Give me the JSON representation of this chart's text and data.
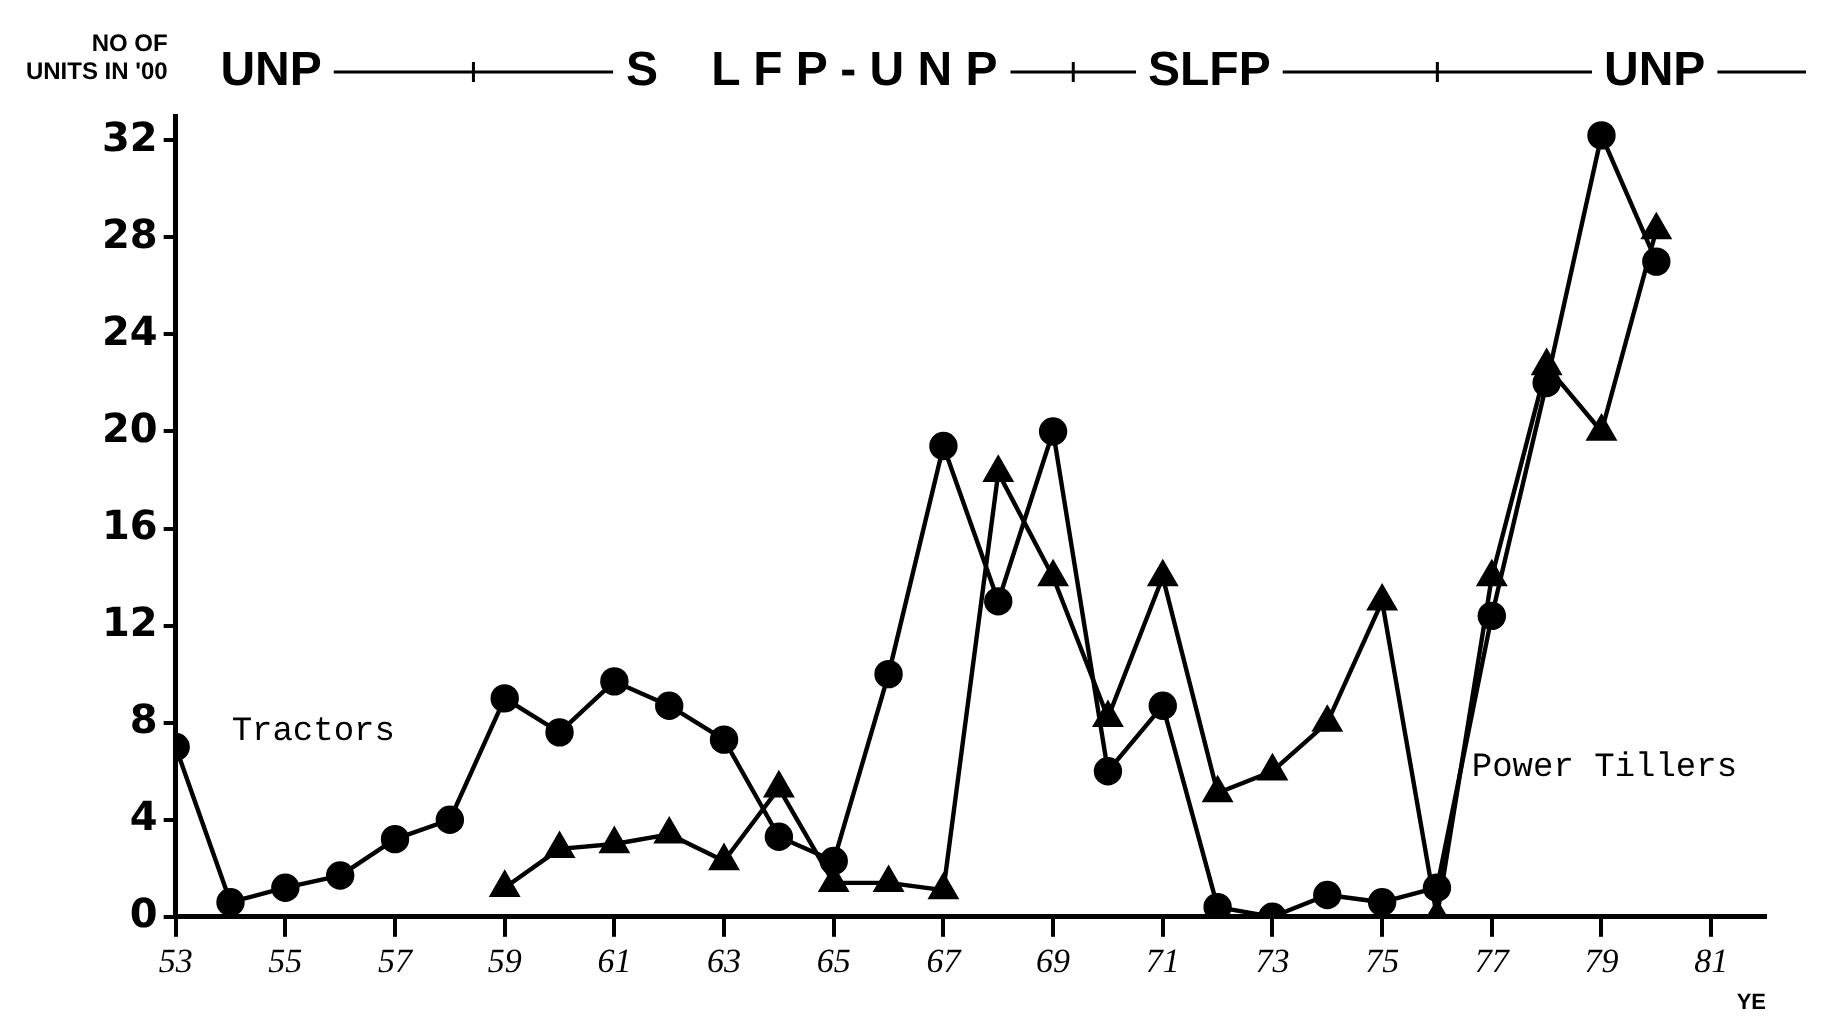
{
  "chart_data": {
    "type": "line",
    "ylabel": "NO OF\nUNITS IN '00",
    "xlabel": "YE",
    "annotations": [
      "UNP",
      "S    L F P - U N P",
      "SLFP",
      "UNP"
    ],
    "series": [
      {
        "name": "Tractors",
        "color": "#000000",
        "marker": "circle",
        "x": [
          53,
          54,
          55,
          56,
          57,
          58,
          59,
          60,
          61,
          62,
          63,
          64,
          65,
          66,
          67,
          68,
          69,
          70,
          71,
          72,
          73,
          74,
          75,
          76,
          77,
          78,
          79,
          80
        ],
        "values": [
          7,
          0.6,
          1.2,
          1.7,
          3.2,
          4,
          9,
          7.6,
          9.7,
          8.7,
          7.3,
          3.3,
          2.3,
          10,
          19.4,
          13,
          20,
          6,
          8.7,
          0.4,
          0,
          0.9,
          0.6,
          1.2,
          12.4,
          22,
          32.2,
          27
        ]
      },
      {
        "name": "Power Tillers",
        "color": "#000000",
        "marker": "triangle",
        "x": [
          59,
          60,
          61,
          62,
          63,
          64,
          65,
          66,
          67,
          68,
          69,
          70,
          71,
          72,
          73,
          74,
          75,
          76,
          77,
          78,
          79,
          80
        ],
        "values": [
          1.2,
          2.8,
          3,
          3.4,
          2.3,
          5.3,
          1.4,
          1.4,
          1.1,
          18.3,
          14,
          8.2,
          14,
          5.1,
          6,
          8,
          13,
          0,
          14,
          22.7,
          20,
          28.3
        ]
      }
    ],
    "xlim": [
      53,
      82
    ],
    "xticks": [
      53,
      55,
      57,
      59,
      61,
      63,
      65,
      67,
      69,
      71,
      73,
      75,
      77,
      79,
      81
    ],
    "ylim": [
      0,
      33
    ],
    "yticks": [
      0,
      4,
      8,
      12,
      16,
      20,
      24,
      28,
      32
    ],
    "grid": false,
    "legend": false,
    "line_style": "solid"
  }
}
